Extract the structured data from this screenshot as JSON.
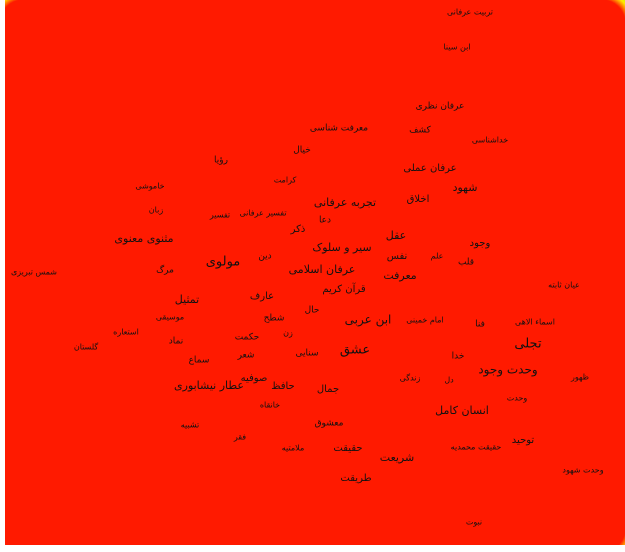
{
  "map": {
    "background_color": "#0000ff",
    "density_colors": [
      "#0000ff",
      "#00e5ff",
      "#00ff66",
      "#ccff00",
      "#ffea00",
      "#ff8000",
      "#ff1a00"
    ],
    "terms": [
      "تربیت عرفانی",
      "ابن سینا",
      "عرفان نظری",
      "معرفت شناسی",
      "کشف",
      "خداشناسی",
      "رؤیا",
      "خیال",
      "عرفان عملی",
      "کرامت",
      "شهود",
      "خاموشی",
      "اخلاق",
      "تجربه عرفانی",
      "دعا",
      "زبان",
      "تفسیر",
      "تفسیر عرفانی",
      "ذکر",
      "عقل",
      "وجود",
      "مثنوی معنوی",
      "سیر و سلوک",
      "نفس",
      "علم",
      "دین",
      "قلب",
      "مولوی",
      "عرفان اسلامی",
      "معرفت",
      "شمس تبریزی",
      "مرگ",
      "قرآن کریم",
      "عیان ثابته",
      "عارف",
      "تمثیل",
      "حال",
      "امام خمینی",
      "اسماء الاهی",
      "موسیقی",
      "ابن عربی",
      "فنا",
      "استعاره",
      "حکمت",
      "شطح",
      "زن",
      "تجلی",
      "گلستان",
      "نماد",
      "عشق",
      "سنایی",
      "خدا",
      "شعر",
      "وحدت وجود",
      "سماع",
      "صوفیه",
      "زندگی",
      "دل",
      "ظهور",
      "عطار نیشابوری",
      "حافظ",
      "جمال",
      "خانقاه",
      "وحدت",
      "انسان کامل",
      "معشوق",
      "تشبیه",
      "توحید",
      "فقر",
      "ملامتیه",
      "حقیقت",
      "حقیقت محمدیه",
      "شریعت",
      "وحدت شهود",
      "طریقت",
      "نبوت"
    ]
  }
}
